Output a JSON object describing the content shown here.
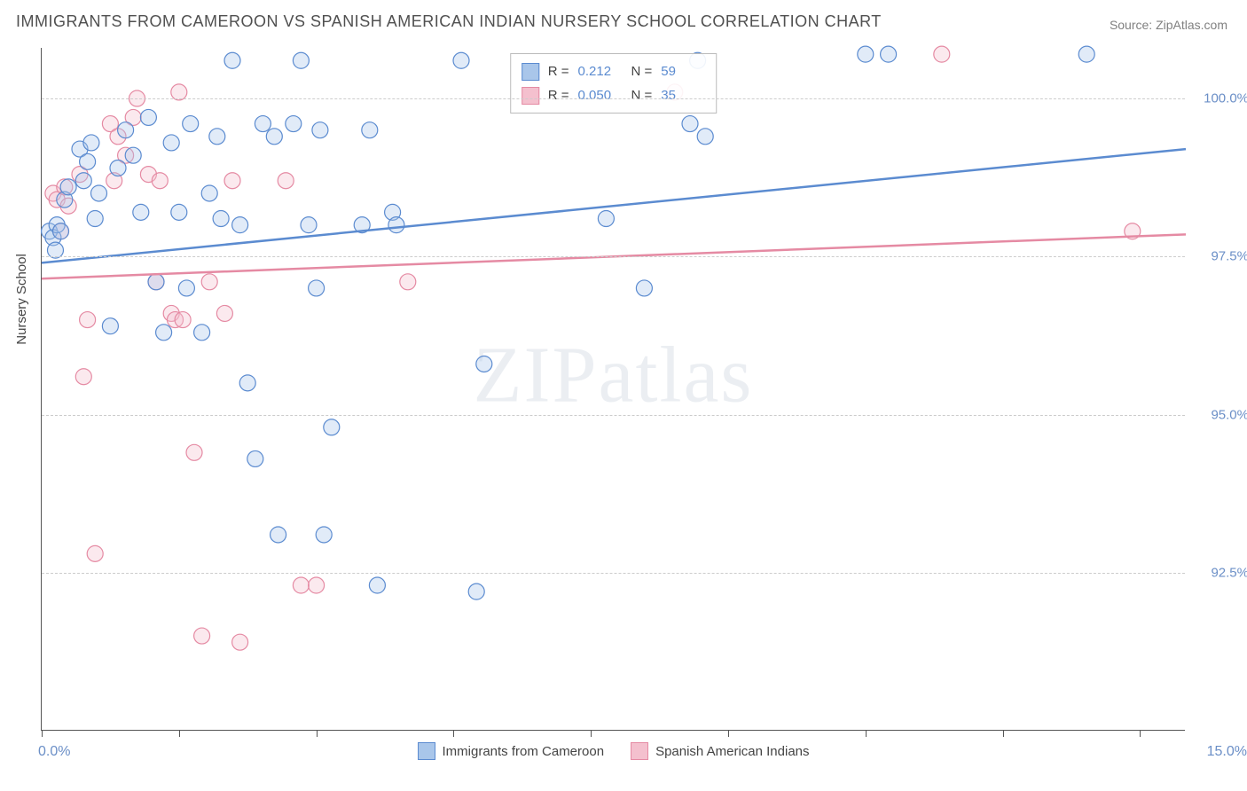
{
  "title": "IMMIGRANTS FROM CAMEROON VS SPANISH AMERICAN INDIAN NURSERY SCHOOL CORRELATION CHART",
  "source": "Source: ZipAtlas.com",
  "ylabel": "Nursery School",
  "watermark": "ZIPatlas",
  "chart": {
    "type": "scatter",
    "xlim": [
      0.0,
      15.0
    ],
    "ylim": [
      90.0,
      100.8
    ],
    "x_tick_positions": [
      0.0,
      1.8,
      3.6,
      5.4,
      7.2,
      9.0,
      10.8,
      12.6,
      14.4
    ],
    "y_gridlines": [
      92.5,
      95.0,
      97.5,
      100.0
    ],
    "y_tick_labels": [
      "92.5%",
      "95.0%",
      "97.5%",
      "100.0%"
    ],
    "x_min_label": "0.0%",
    "x_max_label": "15.0%",
    "background_color": "#ffffff",
    "grid_color": "#cccccc",
    "axis_color": "#555555",
    "axis_label_color": "#6b8fc7",
    "point_radius": 9,
    "point_stroke_width": 1.2,
    "point_fill_opacity": 0.35,
    "trendline_width": 2.5,
    "series": [
      {
        "name": "Immigrants from Cameroon",
        "color_stroke": "#5b8bd0",
        "color_fill": "#a9c6ea",
        "R": "0.212",
        "N": "59",
        "trendline": {
          "x1": 0.0,
          "y1": 97.4,
          "x2": 15.0,
          "y2": 99.2
        },
        "points": [
          [
            0.1,
            97.9
          ],
          [
            0.15,
            97.8
          ],
          [
            0.18,
            97.6
          ],
          [
            0.2,
            98.0
          ],
          [
            0.25,
            97.9
          ],
          [
            0.3,
            98.4
          ],
          [
            0.35,
            98.6
          ],
          [
            0.5,
            99.2
          ],
          [
            0.55,
            98.7
          ],
          [
            0.6,
            99.0
          ],
          [
            0.65,
            99.3
          ],
          [
            0.7,
            98.1
          ],
          [
            0.75,
            98.5
          ],
          [
            0.9,
            96.4
          ],
          [
            1.0,
            98.9
          ],
          [
            1.1,
            99.5
          ],
          [
            1.2,
            99.1
          ],
          [
            1.3,
            98.2
          ],
          [
            1.4,
            99.7
          ],
          [
            1.5,
            97.1
          ],
          [
            1.6,
            96.3
          ],
          [
            1.7,
            99.3
          ],
          [
            1.8,
            98.2
          ],
          [
            1.9,
            97.0
          ],
          [
            1.95,
            99.6
          ],
          [
            2.1,
            96.3
          ],
          [
            2.2,
            98.5
          ],
          [
            2.3,
            99.4
          ],
          [
            2.35,
            98.1
          ],
          [
            2.5,
            100.6
          ],
          [
            2.6,
            98.0
          ],
          [
            2.7,
            95.5
          ],
          [
            2.8,
            94.3
          ],
          [
            2.9,
            99.6
          ],
          [
            3.05,
            99.4
          ],
          [
            3.1,
            93.1
          ],
          [
            3.3,
            99.6
          ],
          [
            3.4,
            100.6
          ],
          [
            3.5,
            98.0
          ],
          [
            3.6,
            97.0
          ],
          [
            3.65,
            99.5
          ],
          [
            3.7,
            93.1
          ],
          [
            3.8,
            94.8
          ],
          [
            4.2,
            98.0
          ],
          [
            4.3,
            99.5
          ],
          [
            4.4,
            92.3
          ],
          [
            4.6,
            98.2
          ],
          [
            4.65,
            98.0
          ],
          [
            5.5,
            100.6
          ],
          [
            5.7,
            92.2
          ],
          [
            5.8,
            95.8
          ],
          [
            7.4,
            98.1
          ],
          [
            7.9,
            97.0
          ],
          [
            8.5,
            99.6
          ],
          [
            8.6,
            100.6
          ],
          [
            8.7,
            99.4
          ],
          [
            10.8,
            100.7
          ],
          [
            11.1,
            100.7
          ],
          [
            13.7,
            100.7
          ]
        ]
      },
      {
        "name": "Spanish American Indians",
        "color_stroke": "#e58aa3",
        "color_fill": "#f4c0ce",
        "R": "0.050",
        "N": "35",
        "trendline": {
          "x1": 0.0,
          "y1": 97.15,
          "x2": 15.0,
          "y2": 97.85
        },
        "points": [
          [
            0.15,
            98.5
          ],
          [
            0.2,
            98.4
          ],
          [
            0.25,
            97.9
          ],
          [
            0.3,
            98.6
          ],
          [
            0.35,
            98.3
          ],
          [
            0.5,
            98.8
          ],
          [
            0.55,
            95.6
          ],
          [
            0.6,
            96.5
          ],
          [
            0.7,
            92.8
          ],
          [
            0.9,
            99.6
          ],
          [
            0.95,
            98.7
          ],
          [
            1.0,
            99.4
          ],
          [
            1.1,
            99.1
          ],
          [
            1.2,
            99.7
          ],
          [
            1.25,
            100.0
          ],
          [
            1.4,
            98.8
          ],
          [
            1.5,
            97.1
          ],
          [
            1.55,
            98.7
          ],
          [
            1.7,
            96.6
          ],
          [
            1.75,
            96.5
          ],
          [
            1.8,
            100.1
          ],
          [
            1.85,
            96.5
          ],
          [
            2.0,
            94.4
          ],
          [
            2.1,
            91.5
          ],
          [
            2.2,
            97.1
          ],
          [
            2.4,
            96.6
          ],
          [
            2.5,
            98.7
          ],
          [
            2.6,
            91.4
          ],
          [
            3.2,
            98.7
          ],
          [
            3.4,
            92.3
          ],
          [
            3.6,
            92.3
          ],
          [
            4.8,
            97.1
          ],
          [
            8.3,
            100.1
          ],
          [
            11.8,
            100.7
          ],
          [
            14.3,
            97.9
          ]
        ]
      }
    ]
  },
  "legend_bottom": [
    {
      "label": "Immigrants from Cameroon",
      "fill": "#a9c6ea",
      "stroke": "#5b8bd0"
    },
    {
      "label": "Spanish American Indians",
      "fill": "#f4c0ce",
      "stroke": "#e58aa3"
    }
  ]
}
